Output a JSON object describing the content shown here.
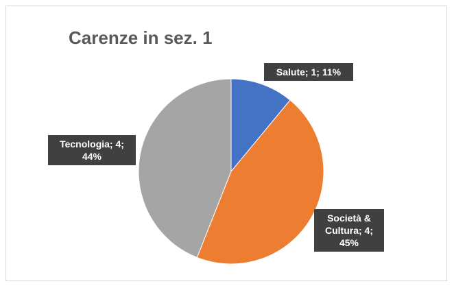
{
  "chart_data": {
    "type": "pie",
    "title": "Carenze in sez. 1",
    "values": [
      11,
      45,
      44
    ],
    "counts": [
      1,
      4,
      4
    ],
    "value_labels": [
      "Salute; 1; 11%",
      "Società & Cultura; 4; 45%",
      "Tecnologia; 4; 44%"
    ],
    "colors": [
      "#4472c4",
      "#ed7d31",
      "#a5a5a5"
    ]
  }
}
